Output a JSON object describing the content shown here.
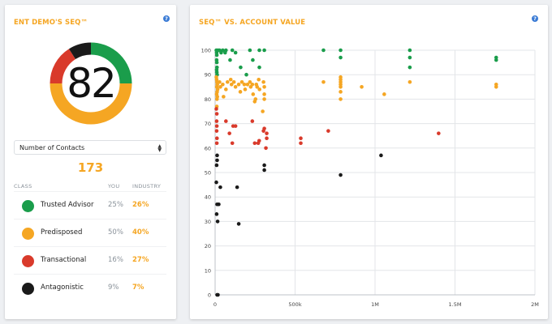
{
  "left_panel": {
    "title": "ENT DEMO'S SEQ™",
    "help_icon": "question-circle-icon",
    "score": "82",
    "donut": {
      "segments": [
        {
          "class": "Trusted Advisor",
          "percent": 25,
          "color": "#1a9d4b"
        },
        {
          "class": "Predisposed",
          "percent": 50,
          "color": "#f5a623"
        },
        {
          "class": "Transactional",
          "percent": 16,
          "color": "#d93a2b"
        },
        {
          "class": "Antagonistic",
          "percent": 9,
          "color": "#1a1a1a"
        }
      ]
    },
    "metric_select": {
      "selected": "Number of Contacts"
    },
    "count": "173",
    "table": {
      "headers": {
        "class": "CLASS",
        "you": "YOU",
        "industry": "INDUSTRY"
      },
      "rows": [
        {
          "name": "Trusted Advisor",
          "you": "25%",
          "industry": "26%",
          "color": "#1a9d4b"
        },
        {
          "name": "Predisposed",
          "you": "50%",
          "industry": "40%",
          "color": "#f5a623"
        },
        {
          "name": "Transactional",
          "you": "16%",
          "industry": "27%",
          "color": "#d93a2b"
        },
        {
          "name": "Antagonistic",
          "you": "9%",
          "industry": "7%",
          "color": "#1a1a1a"
        }
      ]
    }
  },
  "right_panel": {
    "title": "SEQ™ VS. ACCOUNT VALUE",
    "help_icon": "question-circle-icon"
  },
  "chart_data": {
    "type": "scatter",
    "title": "SEQ™ VS. ACCOUNT VALUE",
    "xlabel": "",
    "ylabel": "",
    "xlim": [
      0,
      2000000
    ],
    "ylim": [
      0,
      100
    ],
    "x_ticks": [
      {
        "value": 0,
        "label": "0"
      },
      {
        "value": 500000,
        "label": "500k"
      },
      {
        "value": 1000000,
        "label": "1M"
      },
      {
        "value": 1500000,
        "label": "1.5M"
      },
      {
        "value": 2000000,
        "label": "2M"
      }
    ],
    "y_ticks": [
      0,
      10,
      20,
      30,
      40,
      50,
      60,
      70,
      80,
      90,
      100
    ],
    "grid": true,
    "series": [
      {
        "name": "Trusted Advisor",
        "color": "#1a9d4b",
        "points": [
          [
            0,
            100
          ],
          [
            2000,
            99
          ],
          [
            3000,
            98
          ],
          [
            2000,
            96
          ],
          [
            3000,
            95
          ],
          [
            4000,
            93
          ],
          [
            2000,
            92
          ],
          [
            3000,
            91
          ],
          [
            5000,
            90
          ],
          [
            10000,
            100
          ],
          [
            20000,
            100
          ],
          [
            30000,
            99
          ],
          [
            40000,
            100
          ],
          [
            55000,
            99
          ],
          [
            60000,
            100
          ],
          [
            86000,
            96
          ],
          [
            100000,
            100
          ],
          [
            120000,
            99
          ],
          [
            152000,
            93
          ],
          [
            188000,
            90
          ],
          [
            210000,
            100
          ],
          [
            228000,
            96
          ],
          [
            269000,
            93
          ],
          [
            269000,
            100
          ],
          [
            300000,
            100
          ],
          [
            670000,
            100
          ],
          [
            777000,
            100
          ],
          [
            777000,
            97
          ],
          [
            1210000,
            100
          ],
          [
            1210000,
            97
          ],
          [
            1210000,
            93
          ],
          [
            1750000,
            97
          ],
          [
            1750000,
            96
          ]
        ]
      },
      {
        "name": "Predisposed",
        "color": "#f5a623",
        "points": [
          [
            0,
            89
          ],
          [
            2000,
            88
          ],
          [
            4000,
            87
          ],
          [
            6000,
            86
          ],
          [
            3000,
            85
          ],
          [
            8000,
            84
          ],
          [
            5000,
            83
          ],
          [
            2000,
            82
          ],
          [
            6000,
            81
          ],
          [
            4000,
            80
          ],
          [
            3000,
            77
          ],
          [
            20000,
            87
          ],
          [
            25000,
            85
          ],
          [
            40000,
            86
          ],
          [
            45000,
            81
          ],
          [
            60000,
            84
          ],
          [
            70000,
            87
          ],
          [
            90000,
            88
          ],
          [
            95000,
            86
          ],
          [
            110000,
            87
          ],
          [
            120000,
            85
          ],
          [
            140000,
            86
          ],
          [
            150000,
            83
          ],
          [
            160000,
            87
          ],
          [
            175000,
            86
          ],
          [
            180000,
            84
          ],
          [
            195000,
            86
          ],
          [
            210000,
            87
          ],
          [
            215000,
            85
          ],
          [
            225000,
            86
          ],
          [
            230000,
            82
          ],
          [
            240000,
            79
          ],
          [
            245000,
            80
          ],
          [
            250000,
            86
          ],
          [
            255000,
            85
          ],
          [
            265000,
            88
          ],
          [
            270000,
            84
          ],
          [
            295000,
            87
          ],
          [
            300000,
            82
          ],
          [
            300000,
            85
          ],
          [
            300000,
            80
          ],
          [
            290000,
            75
          ],
          [
            670000,
            87
          ],
          [
            777000,
            89
          ],
          [
            777000,
            88
          ],
          [
            777000,
            87
          ],
          [
            777000,
            86
          ],
          [
            777000,
            85
          ],
          [
            777000,
            83
          ],
          [
            777000,
            80
          ],
          [
            909000,
            85
          ],
          [
            1050000,
            82
          ],
          [
            1210000,
            87
          ],
          [
            1750000,
            86
          ],
          [
            1750000,
            85
          ]
        ]
      },
      {
        "name": "Transactional",
        "color": "#d93a2b",
        "points": [
          [
            0,
            76
          ],
          [
            3000,
            74
          ],
          [
            2000,
            71
          ],
          [
            3000,
            69
          ],
          [
            2000,
            67
          ],
          [
            4000,
            64
          ],
          [
            3000,
            62
          ],
          [
            60000,
            71
          ],
          [
            105000,
            69
          ],
          [
            120000,
            69
          ],
          [
            82000,
            66
          ],
          [
            100000,
            62
          ],
          [
            225000,
            71
          ],
          [
            300000,
            68
          ],
          [
            295000,
            67
          ],
          [
            315000,
            66
          ],
          [
            315000,
            64
          ],
          [
            310000,
            60
          ],
          [
            268000,
            63
          ],
          [
            262000,
            62
          ],
          [
            240000,
            62
          ],
          [
            528000,
            64
          ],
          [
            528000,
            62
          ],
          [
            700000,
            67
          ],
          [
            1390000,
            66
          ]
        ]
      },
      {
        "name": "Antagonistic",
        "color": "#1a1a1a",
        "points": [
          [
            5000,
            57
          ],
          [
            5000,
            55
          ],
          [
            2000,
            53
          ],
          [
            300000,
            53
          ],
          [
            300000,
            51
          ],
          [
            1030000,
            57
          ],
          [
            777000,
            49
          ],
          [
            0,
            46
          ],
          [
            25000,
            44
          ],
          [
            130000,
            44
          ],
          [
            5000,
            37
          ],
          [
            15000,
            37
          ],
          [
            2000,
            33
          ],
          [
            8000,
            30
          ],
          [
            140000,
            29
          ],
          [
            5000,
            0
          ],
          [
            10000,
            0
          ]
        ]
      }
    ]
  }
}
